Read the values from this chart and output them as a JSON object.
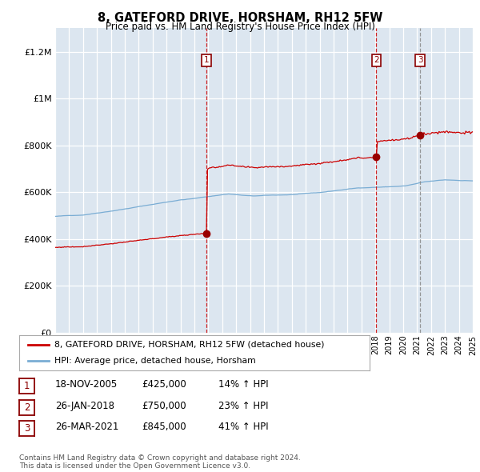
{
  "title": "8, GATEFORD DRIVE, HORSHAM, RH12 5FW",
  "subtitle": "Price paid vs. HM Land Registry's House Price Index (HPI)",
  "background_color": "#dce6f0",
  "line1_color": "#cc0000",
  "line2_color": "#7aadd4",
  "ylim": [
    0,
    1300000
  ],
  "yticks": [
    0,
    200000,
    400000,
    600000,
    800000,
    1000000,
    1200000
  ],
  "ytick_labels": [
    "£0",
    "£200K",
    "£400K",
    "£600K",
    "£800K",
    "£1M",
    "£1.2M"
  ],
  "xstart": 1995,
  "xend": 2025,
  "purchase_dates": [
    2005.88,
    2018.07,
    2021.23
  ],
  "purchase_prices": [
    425000,
    750000,
    845000
  ],
  "purchase_labels": [
    "1",
    "2",
    "3"
  ],
  "purchase_vline_colors": [
    "#cc0000",
    "#cc0000",
    "#888888"
  ],
  "purchase_vline_styles": [
    "--",
    "--",
    "--"
  ],
  "legend_line1": "8, GATEFORD DRIVE, HORSHAM, RH12 5FW (detached house)",
  "legend_line2": "HPI: Average price, detached house, Horsham",
  "table_data": [
    [
      "1",
      "18-NOV-2005",
      "£425,000",
      "14% ↑ HPI"
    ],
    [
      "2",
      "26-JAN-2018",
      "£750,000",
      "23% ↑ HPI"
    ],
    [
      "3",
      "26-MAR-2021",
      "£845,000",
      "41% ↑ HPI"
    ]
  ],
  "footnote": "Contains HM Land Registry data © Crown copyright and database right 2024.\nThis data is licensed under the Open Government Licence v3.0."
}
